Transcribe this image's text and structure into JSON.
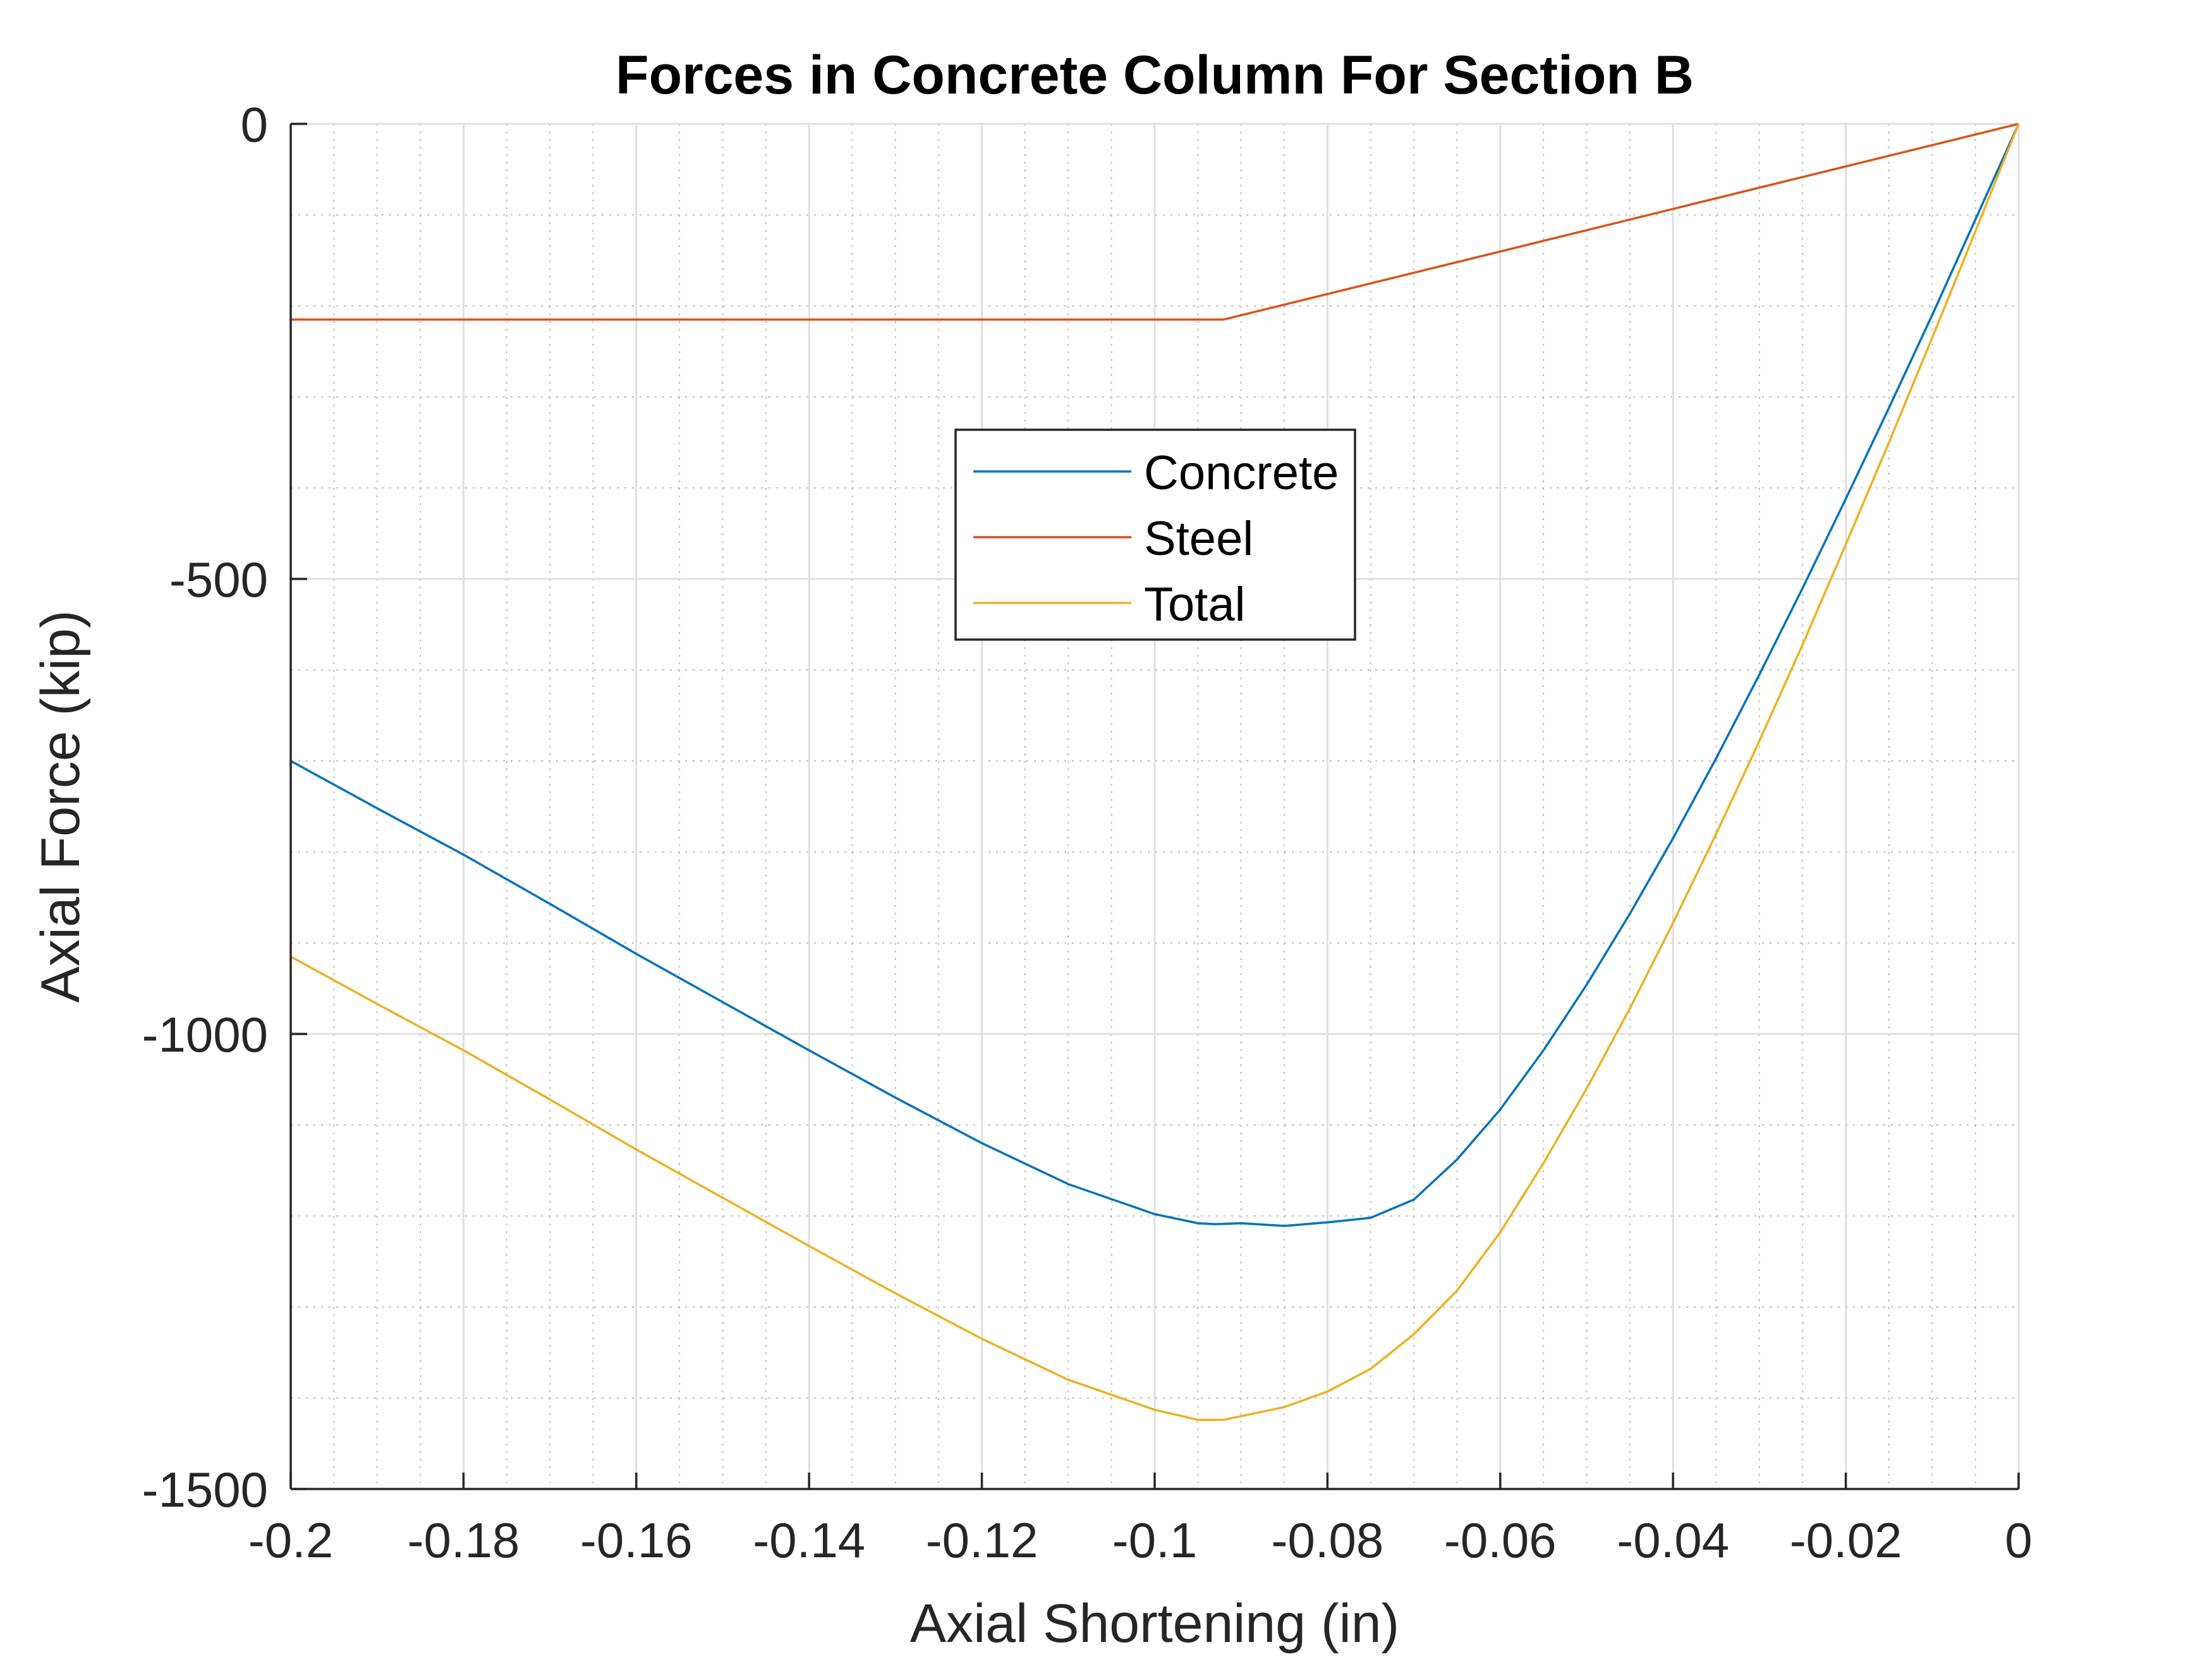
{
  "chart_data": {
    "type": "line",
    "title": "Forces in Concrete Column For Section B",
    "xlabel": "Axial Shortening (in)",
    "ylabel": "Axial Force (kip)",
    "xlim": [
      -0.2,
      0
    ],
    "ylim": [
      -1500,
      0
    ],
    "xticks": [
      -0.2,
      -0.18,
      -0.16,
      -0.14,
      -0.12,
      -0.1,
      -0.08,
      -0.06,
      -0.04,
      -0.02,
      0
    ],
    "xtick_labels": [
      "-0.2",
      "-0.18",
      "-0.16",
      "-0.14",
      "-0.12",
      "-0.1",
      "-0.08",
      "-0.06",
      "-0.04",
      "-0.02",
      "0"
    ],
    "yticks": [
      0,
      -500,
      -1000,
      -1500
    ],
    "ytick_labels": [
      "0",
      "-500",
      "-1000",
      "-1500"
    ],
    "grid": true,
    "minor_grid": true,
    "legend_position": "upper-center",
    "series": [
      {
        "name": "Concrete",
        "color": "#0072BD",
        "x": [
          0,
          -0.005,
          -0.01,
          -0.015,
          -0.02,
          -0.025,
          -0.03,
          -0.035,
          -0.04,
          -0.045,
          -0.05,
          -0.055,
          -0.06,
          -0.065,
          -0.07,
          -0.075,
          -0.08,
          -0.085,
          -0.09,
          -0.093,
          -0.095,
          -0.1,
          -0.11,
          -0.12,
          -0.13,
          -0.14,
          -0.15,
          -0.16,
          -0.17,
          -0.18,
          -0.19,
          -0.2
        ],
        "y": [
          0,
          -105,
          -210,
          -312,
          -412,
          -510,
          -605,
          -697,
          -785,
          -868,
          -946,
          -1018,
          -1083,
          -1138,
          -1182,
          -1202,
          -1207,
          -1211,
          -1208,
          -1209,
          -1208,
          -1198,
          -1165,
          -1120,
          -1070,
          -1018,
          -965,
          -912,
          -857,
          -803,
          -752,
          -700
        ]
      },
      {
        "name": "Steel",
        "color": "#D95319",
        "x": [
          0,
          -0.092,
          -0.2
        ],
        "y": [
          0,
          -215,
          -215
        ]
      },
      {
        "name": "Total",
        "color": "#EDB120",
        "x": [
          0,
          -0.005,
          -0.01,
          -0.015,
          -0.02,
          -0.025,
          -0.03,
          -0.035,
          -0.04,
          -0.045,
          -0.05,
          -0.055,
          -0.06,
          -0.065,
          -0.07,
          -0.075,
          -0.08,
          -0.085,
          -0.09,
          -0.092,
          -0.095,
          -0.1,
          -0.11,
          -0.12,
          -0.13,
          -0.14,
          -0.15,
          -0.16,
          -0.17,
          -0.18,
          -0.19,
          -0.2
        ],
        "y": [
          0,
          -118,
          -235,
          -350,
          -462,
          -572,
          -678,
          -780,
          -878,
          -972,
          -1060,
          -1142,
          -1218,
          -1282,
          -1330,
          -1368,
          -1393,
          -1410,
          -1420,
          -1424,
          -1424,
          -1413,
          -1380,
          -1335,
          -1285,
          -1233,
          -1180,
          -1127,
          -1072,
          -1018,
          -967,
          -915
        ]
      }
    ]
  }
}
